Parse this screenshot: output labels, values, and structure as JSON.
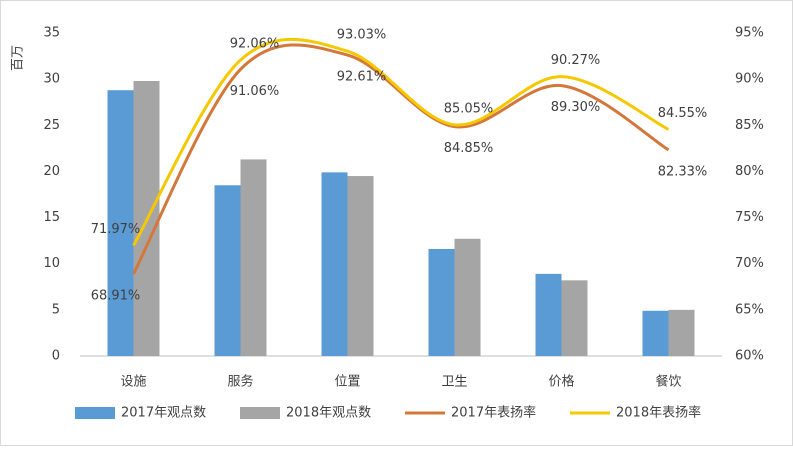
{
  "chart_data": {
    "type": "bar",
    "y_label": "百万",
    "categories": [
      "设施",
      "服务",
      "位置",
      "卫生",
      "价格",
      "餐饮"
    ],
    "series": [
      {
        "name": "2017年观点数",
        "color": "#5b9bd5",
        "values": [
          28.8,
          18.5,
          19.9,
          11.6,
          8.9,
          4.9
        ]
      },
      {
        "name": "2018年观点数",
        "color": "#a5a5a5",
        "values": [
          29.8,
          21.3,
          19.5,
          12.7,
          8.2,
          5.0
        ]
      },
      {
        "name": "2017年表扬率",
        "color": "#d4773a",
        "type": "line",
        "axis": "y2",
        "values": [
          68.91,
          91.06,
          92.61,
          84.85,
          89.3,
          82.33
        ],
        "value_labels": [
          "68.91%",
          "91.06%",
          "92.61%",
          "84.85%",
          "89.30%",
          "82.33%"
        ]
      },
      {
        "name": "2018年表扬率",
        "color": "#f5c800",
        "type": "line",
        "axis": "y2",
        "values": [
          71.97,
          92.06,
          93.03,
          85.05,
          90.27,
          84.55
        ],
        "value_labels": [
          "71.97%",
          "92.06%",
          "93.03%",
          "85.05%",
          "90.27%",
          "84.55%"
        ]
      }
    ],
    "ylim": [
      0,
      35
    ],
    "yticks": [
      0,
      5,
      10,
      15,
      20,
      25,
      30,
      35
    ],
    "y2lim": [
      60,
      95
    ],
    "y2ticks": [
      {
        "value": 60,
        "label": "60%"
      },
      {
        "value": 65,
        "label": "65%"
      },
      {
        "value": 70,
        "label": "70%"
      },
      {
        "value": 75,
        "label": "75%"
      },
      {
        "value": 80,
        "label": "80%"
      },
      {
        "value": 85,
        "label": "85%"
      },
      {
        "value": 90,
        "label": "90%"
      },
      {
        "value": 95,
        "label": "95%"
      }
    ],
    "grid": false,
    "legend": "bottom"
  }
}
